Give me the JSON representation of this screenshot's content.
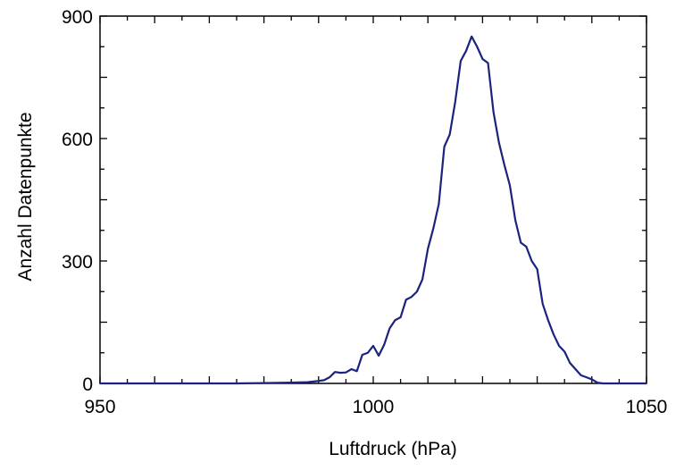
{
  "chart_data": {
    "type": "line",
    "title": "",
    "xlabel": "Luftdruck  (hPa)",
    "ylabel": "Anzahl Datenpunkte",
    "xlim": [
      950,
      1050
    ],
    "ylim": [
      0,
      900
    ],
    "x_ticks": [
      950,
      1000,
      1050
    ],
    "y_ticks": [
      0,
      300,
      600,
      900
    ],
    "grid": false,
    "line_color": "#1a237e",
    "series": [
      {
        "name": "",
        "x": [
          950,
          960,
          970,
          975,
          980,
          985,
          988,
          990,
          991,
          992,
          993,
          994,
          995,
          996,
          997,
          998,
          999,
          1000,
          1001,
          1002,
          1003,
          1004,
          1005,
          1006,
          1007,
          1008,
          1009,
          1010,
          1011,
          1012,
          1013,
          1014,
          1015,
          1016,
          1017,
          1018,
          1019,
          1020,
          1021,
          1022,
          1023,
          1024,
          1025,
          1026,
          1027,
          1028,
          1029,
          1030,
          1031,
          1032,
          1033,
          1034,
          1035,
          1036,
          1037,
          1038,
          1039,
          1040,
          1041,
          1042,
          1043,
          1045,
          1050
        ],
        "y": [
          0,
          0,
          0,
          0,
          1,
          2,
          3,
          6,
          8,
          15,
          28,
          26,
          27,
          35,
          30,
          70,
          75,
          92,
          68,
          95,
          135,
          155,
          162,
          205,
          212,
          225,
          255,
          330,
          380,
          440,
          580,
          610,
          690,
          790,
          815,
          850,
          825,
          795,
          785,
          665,
          590,
          535,
          485,
          400,
          345,
          335,
          300,
          280,
          195,
          155,
          120,
          92,
          78,
          50,
          35,
          20,
          15,
          10,
          2,
          0,
          0,
          0,
          0
        ]
      }
    ]
  }
}
